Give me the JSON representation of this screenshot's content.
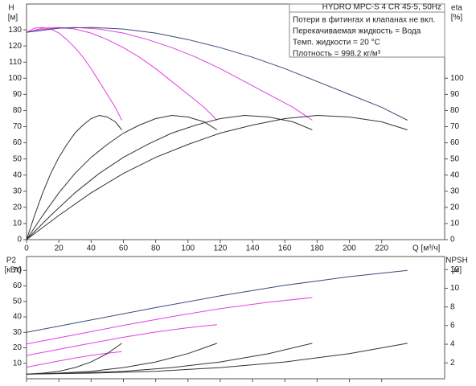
{
  "chart_data": [
    {
      "type": "line",
      "ylabel": "H",
      "yunit": "[м]",
      "y2label": "eta",
      "y2unit": "[%]",
      "xlabel": "Q [м³/ч]",
      "header": "HYDRO MPC-S 4 CR 45-5, 50Hz",
      "notes": [
        "Потери в фитингах и клапанах не вкл.",
        "Перекачиваемая жидкость = Вода",
        "Темп. жидкости = 20 °C",
        "Плотность = 998.2 кг/м³"
      ],
      "xlim": [
        0,
        259
      ],
      "xticks": [
        0,
        20,
        40,
        60,
        80,
        100,
        120,
        140,
        160,
        180,
        200,
        220
      ],
      "ylim": [
        0,
        146
      ],
      "yticks": [
        0,
        10,
        20,
        30,
        40,
        50,
        60,
        70,
        80,
        90,
        100,
        110,
        120,
        130
      ],
      "y2lim": [
        0,
        146
      ],
      "y2ticks": [
        0,
        10,
        20,
        30,
        40,
        50,
        60,
        70,
        80,
        90,
        100
      ],
      "series": [
        {
          "color": "#e040e0",
          "x": [
            0,
            5,
            10,
            15,
            20,
            25,
            30,
            35,
            40,
            45,
            50,
            55,
            59
          ],
          "values": [
            128.5,
            131,
            131.5,
            130.5,
            128,
            124,
            119,
            113,
            106,
            98,
            90,
            82,
            74
          ]
        },
        {
          "color": "#e040e0",
          "x": [
            0,
            10,
            20,
            30,
            40,
            50,
            60,
            70,
            80,
            90,
            100,
            110,
            118
          ],
          "values": [
            128.5,
            131,
            131.5,
            130.5,
            128,
            124,
            119,
            113,
            106,
            98,
            90,
            82,
            74
          ]
        },
        {
          "color": "#e040e0",
          "x": [
            0,
            15,
            30,
            45,
            60,
            75,
            90,
            105,
            120,
            135,
            150,
            165,
            177
          ],
          "values": [
            128.5,
            131,
            131.5,
            130.5,
            128,
            124,
            119,
            113,
            106,
            98,
            90,
            82,
            74
          ]
        },
        {
          "color": "#3a4a7a",
          "x": [
            0,
            20,
            40,
            60,
            80,
            100,
            120,
            140,
            160,
            180,
            200,
            220,
            236
          ],
          "values": [
            128.5,
            131,
            131.5,
            130.5,
            128,
            124,
            119,
            113,
            106,
            98,
            90,
            82,
            74
          ]
        },
        {
          "color": "#333333",
          "axis": "y2",
          "x": [
            0,
            5,
            10,
            15,
            20,
            25,
            30,
            35,
            40,
            45,
            50,
            55,
            59
          ],
          "values": [
            0,
            15,
            29,
            41,
            51,
            59,
            66,
            71,
            75,
            77,
            76,
            73,
            68
          ]
        },
        {
          "color": "#333333",
          "axis": "y2",
          "x": [
            0,
            10,
            20,
            30,
            40,
            50,
            60,
            70,
            80,
            90,
            100,
            110,
            118
          ],
          "values": [
            0,
            15,
            29,
            41,
            51,
            59,
            66,
            71,
            75,
            77,
            76,
            73,
            68
          ]
        },
        {
          "color": "#333333",
          "axis": "y2",
          "x": [
            0,
            15,
            30,
            45,
            60,
            75,
            90,
            105,
            120,
            135,
            150,
            165,
            177
          ],
          "values": [
            0,
            15,
            29,
            41,
            51,
            59,
            66,
            71,
            75,
            77,
            76,
            73,
            68
          ]
        },
        {
          "color": "#333333",
          "axis": "y2",
          "x": [
            0,
            20,
            40,
            60,
            80,
            100,
            120,
            140,
            160,
            180,
            200,
            220,
            236
          ],
          "values": [
            0,
            15,
            29,
            41,
            51,
            59,
            66,
            71,
            75,
            77,
            76,
            73,
            68
          ]
        }
      ]
    },
    {
      "type": "line",
      "ylabel": "P2",
      "yunit": "[кВт]",
      "y2label": "NPSH",
      "y2unit": "[м]",
      "xlim": [
        0,
        259
      ],
      "xticks": [
        0,
        20,
        40,
        60,
        80,
        100,
        120,
        140,
        160,
        180,
        200,
        220
      ],
      "ylim": [
        0,
        79
      ],
      "yticks": [
        10,
        20,
        30,
        40,
        50,
        60,
        70
      ],
      "y2lim": [
        0.3,
        13.4
      ],
      "y2ticks": [
        2,
        4,
        6,
        8,
        10,
        12
      ],
      "series": [
        {
          "color": "#e040e0",
          "x": [
            0,
            10,
            20,
            30,
            40,
            50,
            59
          ],
          "values": [
            7.5,
            9.5,
            11.5,
            13.4,
            15.1,
            16.5,
            17.5
          ]
        },
        {
          "color": "#e040e0",
          "x": [
            0,
            20,
            40,
            60,
            80,
            100,
            118
          ],
          "values": [
            15,
            19,
            23,
            26.8,
            30.2,
            33,
            35
          ]
        },
        {
          "color": "#e040e0",
          "x": [
            0,
            30,
            60,
            90,
            120,
            150,
            177
          ],
          "values": [
            22.5,
            28.5,
            34.5,
            40.2,
            45.3,
            49.5,
            52.5
          ]
        },
        {
          "color": "#3a4a7a",
          "x": [
            0,
            40,
            80,
            120,
            160,
            200,
            236
          ],
          "values": [
            30,
            38,
            46,
            53.6,
            60.4,
            66,
            70
          ]
        },
        {
          "color": "#333333",
          "axis": "y2",
          "x": [
            0,
            10,
            20,
            30,
            40,
            50,
            59
          ],
          "values": [
            0.8,
            0.9,
            1.1,
            1.5,
            2.1,
            3.0,
            4.1
          ]
        },
        {
          "color": "#333333",
          "axis": "y2",
          "x": [
            0,
            20,
            40,
            60,
            80,
            100,
            118
          ],
          "values": [
            0.8,
            0.9,
            1.1,
            1.5,
            2.1,
            3.0,
            4.1
          ]
        },
        {
          "color": "#333333",
          "axis": "y2",
          "x": [
            0,
            30,
            60,
            90,
            120,
            150,
            177
          ],
          "values": [
            0.8,
            0.9,
            1.1,
            1.5,
            2.1,
            3.0,
            4.1
          ]
        },
        {
          "color": "#333333",
          "axis": "y2",
          "x": [
            0,
            40,
            80,
            120,
            160,
            200,
            236
          ],
          "values": [
            0.8,
            0.9,
            1.1,
            1.5,
            2.1,
            3.0,
            4.1
          ]
        }
      ]
    }
  ]
}
